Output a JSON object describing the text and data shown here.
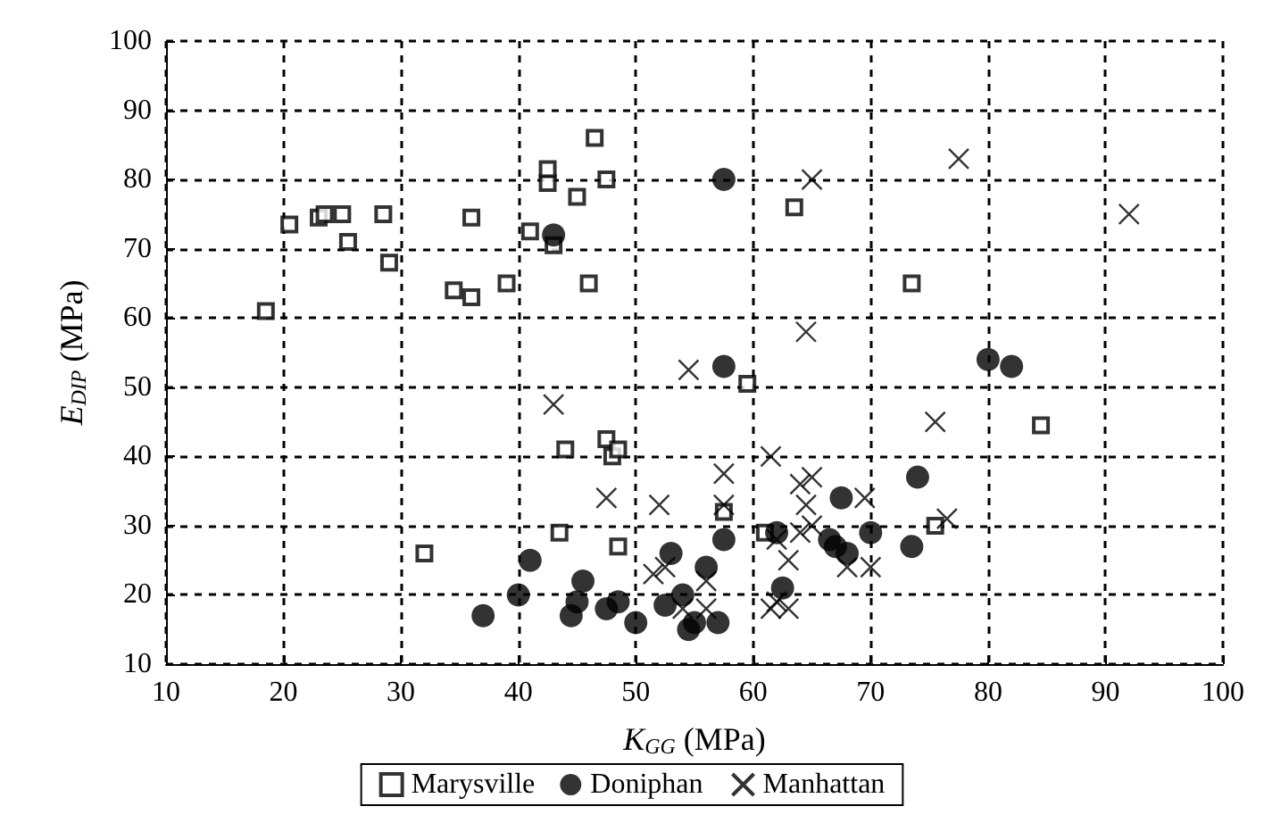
{
  "chart_data": {
    "type": "scatter",
    "xlabel": "K$_{GG}$ (MPa)",
    "ylabel": "E$_{DIP}$ (MPa)",
    "xlim": [
      10,
      100
    ],
    "xticks": [
      10,
      20,
      30,
      40,
      50,
      60,
      70,
      80,
      90,
      100
    ],
    "ylim": [
      10,
      100
    ],
    "yticks": [
      10,
      20,
      30,
      40,
      50,
      60,
      70,
      80,
      90,
      100
    ],
    "grid": true,
    "legend": "bottom",
    "series": [
      {
        "name": "Marysville",
        "color": "#000000",
        "marker": "square",
        "x": [
          18.5,
          20.5,
          23,
          23.5,
          25,
          25.5,
          28.5,
          29,
          34.5,
          36,
          36,
          39,
          41,
          42.5,
          42.5,
          43,
          45,
          46,
          46.5,
          47.5,
          63.5,
          73.5,
          44,
          47.5,
          48,
          48.5,
          43.5,
          48.5,
          32,
          57.5,
          59.5,
          75.5,
          84.5,
          61
        ],
        "values": [
          61,
          73.5,
          74.5,
          75,
          75,
          71,
          75,
          68,
          64,
          74.5,
          63,
          65,
          72.5,
          79.5,
          81.5,
          70.5,
          77.5,
          65,
          86,
          80,
          76,
          65,
          41,
          42.5,
          40,
          41,
          29,
          27,
          26,
          32,
          50.5,
          30,
          44.5,
          29
        ]
      },
      {
        "name": "Doniphan",
        "color": "#000000",
        "marker": "circle",
        "x": [
          43,
          57.5,
          57.5,
          80,
          82,
          74,
          67.5,
          62,
          57.5,
          53,
          52.5,
          54,
          54.5,
          56,
          57,
          55,
          50,
          48.5,
          47.5,
          45.5,
          44.5,
          45,
          41,
          40,
          37,
          62.5,
          66.5,
          67,
          68,
          70,
          73.5
        ],
        "values": [
          72,
          80,
          53,
          54,
          53,
          37,
          34,
          29,
          28,
          26,
          18.5,
          20,
          15,
          24,
          16,
          16,
          16,
          19,
          18,
          22,
          17,
          19,
          25,
          20,
          17,
          21,
          28,
          27,
          26,
          29,
          27
        ]
      },
      {
        "name": "Manhattan",
        "color": "#000000",
        "marker": "cross",
        "x": [
          43,
          47.5,
          52,
          51.5,
          52.5,
          54.5,
          57.5,
          57.5,
          64.5,
          65,
          77.5,
          92,
          61.5,
          64,
          65,
          64.5,
          64,
          63,
          62,
          61.5,
          62,
          65,
          69.5,
          70,
          68,
          76.5,
          75.5,
          56,
          56,
          54,
          63
        ],
        "values": [
          47.5,
          34,
          33,
          23,
          24,
          52.5,
          37.5,
          33,
          58,
          80,
          83,
          75,
          40,
          36,
          37,
          33,
          29,
          25,
          28,
          18,
          19,
          30,
          34,
          24,
          24,
          31,
          45,
          22,
          18,
          18,
          18
        ]
      }
    ]
  }
}
